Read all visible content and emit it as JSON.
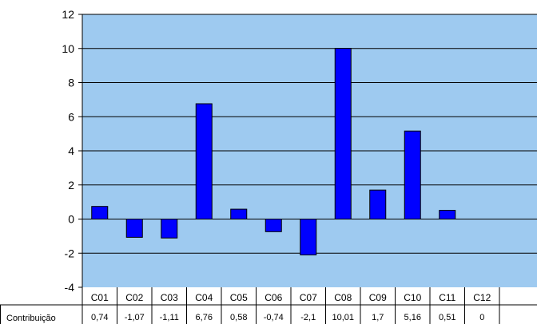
{
  "chart_data": {
    "type": "bar",
    "title": "",
    "xlabel": "",
    "ylabel": "",
    "ylim": [
      -4,
      12
    ],
    "yticks": [
      "-4",
      "-2",
      "0",
      "2",
      "4",
      "6",
      "8",
      "10",
      "12"
    ],
    "grid": true,
    "legend": "none",
    "categories": [
      "C01",
      "C02",
      "C03",
      "C04",
      "C05",
      "C06",
      "C07",
      "C08",
      "C09",
      "C10",
      "C11",
      "C12"
    ],
    "values": [
      0.74,
      -1.07,
      -1.11,
      6.76,
      0.58,
      -0.74,
      -2.1,
      10.01,
      1.7,
      5.16,
      0.51,
      0
    ],
    "table": {
      "row_label": "Contribuição",
      "value_labels": [
        "0,74",
        "-1,07",
        "-1,11",
        "6,76",
        "0,58",
        "-0,74",
        "-2,1",
        "10,01",
        "1,7",
        "5,16",
        "0,51",
        "0"
      ]
    },
    "colors": {
      "plot_background": "#9ECAF0",
      "bar_fill": "#0000FF",
      "bar_stroke": "#000000",
      "grid": "#000000"
    }
  }
}
